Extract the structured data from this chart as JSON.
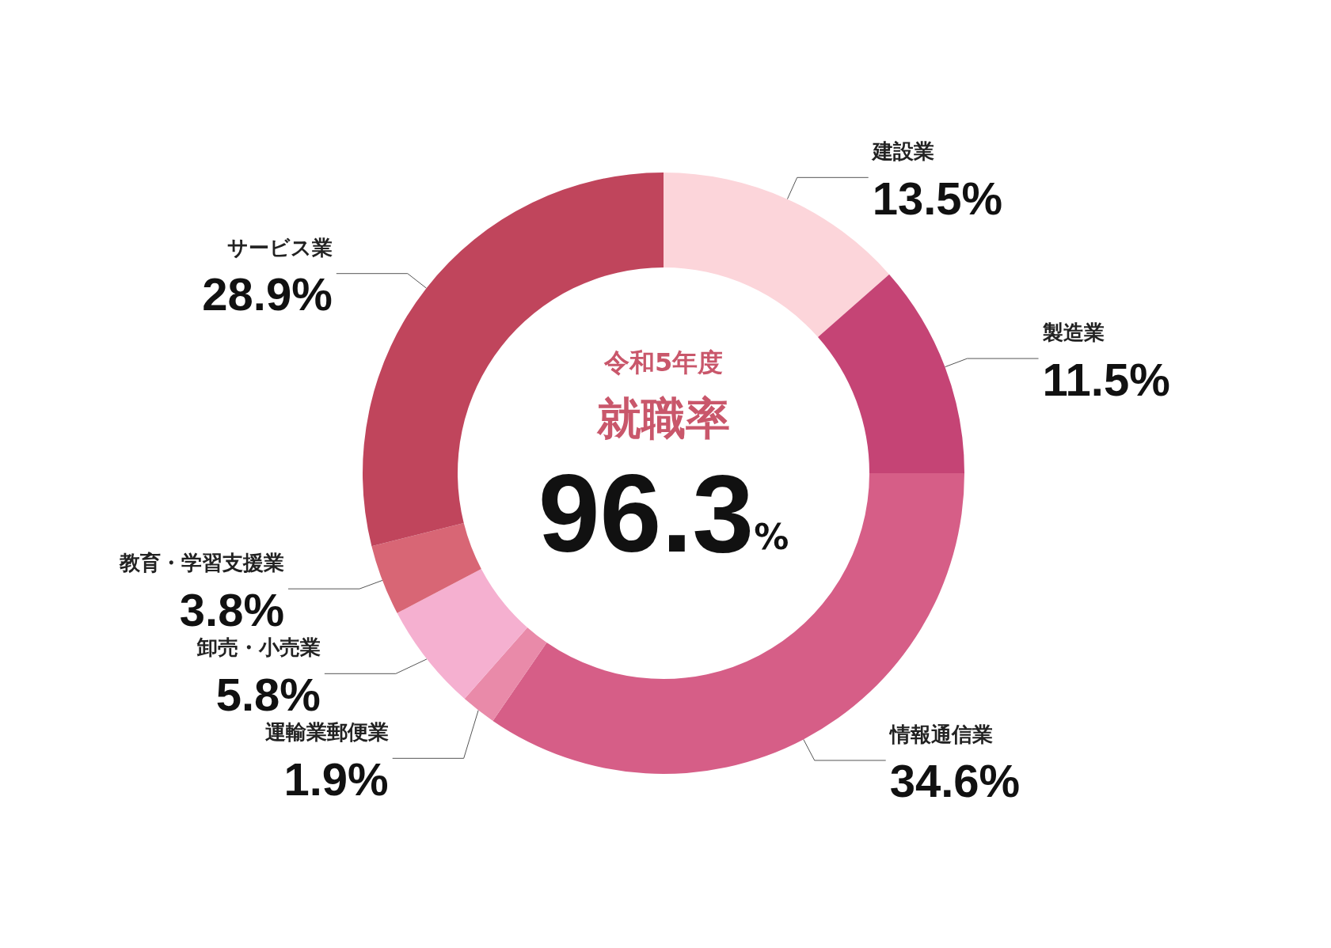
{
  "chart_data": {
    "type": "donut",
    "subtitle": "令和5年度",
    "title": "就職率",
    "annotations": [
      "96.3%"
    ],
    "categories": [
      "建設業",
      "製造業",
      "情報通信業",
      "運輸業郵便業",
      "卸売・小売業",
      "教育・学習支援業",
      "サービス業"
    ],
    "values": [
      13.5,
      11.5,
      34.6,
      1.9,
      5.8,
      3.8,
      28.9
    ],
    "value_labels": [
      "13.5%",
      "11.5%",
      "34.6%",
      "1.9%",
      "5.8%",
      "3.8%",
      "28.9%"
    ],
    "colors": [
      "#fcd5da",
      "#c54475",
      "#d65e87",
      "#e98aa9",
      "#f5b0d0",
      "#d86675",
      "#c0455c"
    ],
    "legend": false
  }
}
